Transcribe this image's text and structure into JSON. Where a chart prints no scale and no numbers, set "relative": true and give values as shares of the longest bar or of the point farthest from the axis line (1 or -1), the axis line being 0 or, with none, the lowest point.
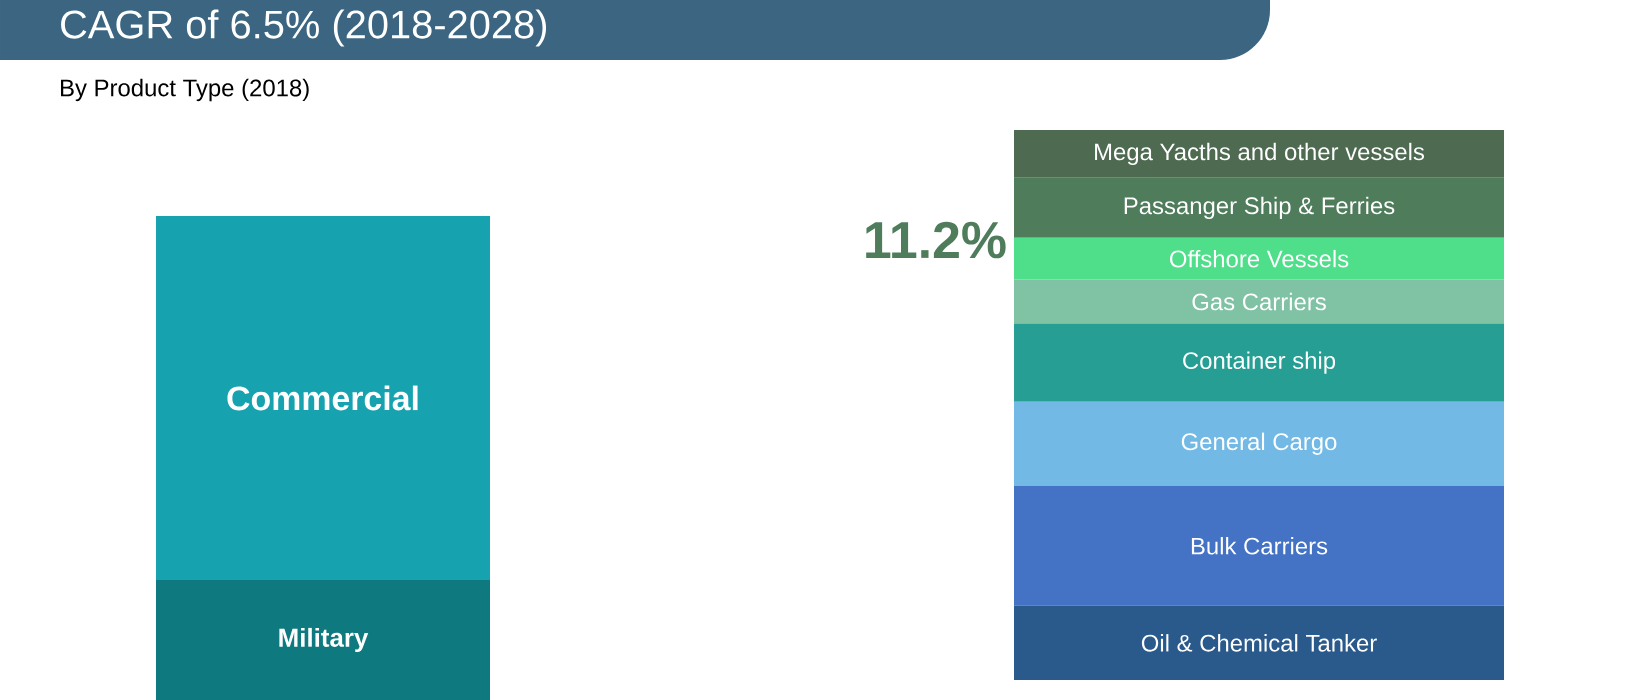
{
  "chart_data": [
    {
      "type": "bar",
      "title": "CAGR of 6.5% (2018-2028)",
      "subtitle": "By Product Type (2018)",
      "relative": true,
      "stacked": true,
      "categories": [
        null
      ],
      "series": [
        {
          "name": "Military",
          "color": "#0e7a80",
          "values": [
            0.248
          ]
        },
        {
          "name": "Commercial",
          "color": "#17a2b0",
          "values": [
            0.752
          ]
        }
      ]
    },
    {
      "type": "bar",
      "relative": true,
      "stacked": true,
      "categories": [
        null
      ],
      "annotations": [
        "11.2%"
      ],
      "series": [
        {
          "name": "Oil & Chemical Tanker",
          "color": "#2a5a8c",
          "values": [
            0.135
          ]
        },
        {
          "name": "Bulk Carriers",
          "color": "#4472c4",
          "values": [
            0.218
          ]
        },
        {
          "name": "General Cargo",
          "color": "#72b9e6",
          "values": [
            0.153
          ]
        },
        {
          "name": "Container ship",
          "color": "#279e94",
          "values": [
            0.142
          ]
        },
        {
          "name": "Gas Carriers",
          "color": "#80c2a4",
          "values": [
            0.08
          ]
        },
        {
          "name": "Offshore Vessels",
          "color": "#4fde8a",
          "values": [
            0.076
          ]
        },
        {
          "name": "Passanger Ship & Ferries",
          "color": "#4f7d5c",
          "values": [
            0.109
          ]
        },
        {
          "name": "Mega Yacths and other vessels",
          "color": "#4e6b52",
          "values": [
            0.087
          ]
        }
      ]
    }
  ]
}
